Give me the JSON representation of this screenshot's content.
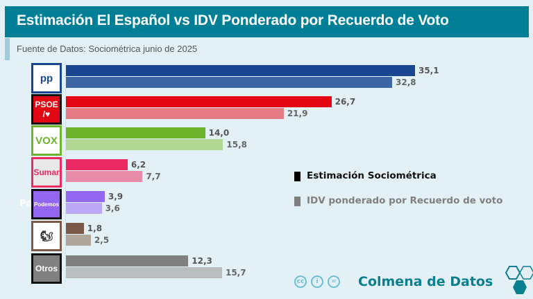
{
  "header": {
    "title": "Estimación El Español vs IDV Ponderado por Recuerdo de Voto",
    "source": "Fuente de Datos: Sociométrica junio de 2025"
  },
  "chart_data": {
    "type": "bar",
    "orientation": "horizontal",
    "categories": [
      "PP",
      "PSOE",
      "VOX",
      "Sumar",
      "Podemos",
      "SALF",
      "Otros"
    ],
    "series": [
      {
        "name": "Estimación Sociométrica",
        "values": [
          35.1,
          26.7,
          14.0,
          6.2,
          3.9,
          1.8,
          12.3
        ],
        "labels": [
          "35,1",
          "26,7",
          "14,0",
          "6,2",
          "3,9",
          "1,8",
          "12,3"
        ],
        "colors": [
          "#1a4590",
          "#e30613",
          "#6db42a",
          "#ea2a60",
          "#9366f0",
          "#7b5b47",
          "#808080"
        ]
      },
      {
        "name": "IDV ponderado por Recuerdo de voto",
        "values": [
          32.8,
          21.9,
          15.8,
          7.7,
          3.6,
          2.5,
          15.7
        ],
        "labels": [
          "32,8",
          "21,9",
          "15,8",
          "7,7",
          "3,6",
          "2,5",
          "15,7"
        ],
        "colors": [
          "#3d67a4",
          "#e57b84",
          "#b0d690",
          "#e88ba8",
          "#bba8f4",
          "#b0a69c",
          "#b9bdbd"
        ]
      }
    ],
    "legend": "right",
    "grid": false,
    "xlim": [
      0,
      36
    ]
  },
  "logos": [
    {
      "text": "pp",
      "border": "#1a4590",
      "bg": "#fff",
      "color": "#1a4590"
    },
    {
      "text": "PSOE",
      "sub": "/♥",
      "border": "#111",
      "bg": "#e30613",
      "color": "#fff"
    },
    {
      "text": "VOX",
      "border": "#6db42a",
      "bg": "#fff",
      "color": "#6db42a"
    },
    {
      "text": "Sumar",
      "border": "#ea2a60",
      "bg": "#e8e8e8",
      "color": "#ea2a60"
    },
    {
      "text": "Podemos",
      "border": "#111",
      "bg": "#9366f0",
      "color": "#fff"
    },
    {
      "text": "🐿",
      "border": "#7b5b47",
      "bg": "#fff",
      "color": "#333"
    },
    {
      "text": "Otros",
      "border": "#111",
      "bg": "#808080",
      "color": "#fff"
    }
  ],
  "stray_text": "Po",
  "legend": {
    "items": [
      {
        "label": "Estimación Sociométrica",
        "color": "#000000"
      },
      {
        "label": "IDV ponderado por Recuerdo de voto",
        "color": "#7f7f7f"
      }
    ]
  },
  "footer": {
    "license_icons": [
      "cc",
      "by",
      "nd"
    ],
    "license_labels": [
      "cc",
      "i",
      "="
    ],
    "brand": "Colmena de Datos"
  }
}
